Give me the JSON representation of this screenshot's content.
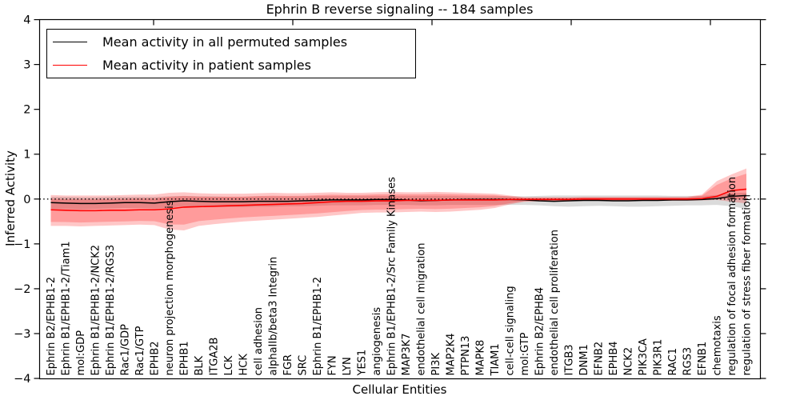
{
  "chart_data": {
    "type": "line",
    "title": "Ephrin B reverse signaling -- 184 samples",
    "xlabel": "Cellular Entities",
    "ylabel": "Inferred Activity",
    "ylim": [
      -4,
      4
    ],
    "grid": false,
    "legend_position": "upper left",
    "zero_line": {
      "style": "dotted",
      "color": "#000000",
      "y": 0
    },
    "ytick_values": [
      4,
      3,
      2,
      1,
      0,
      -1,
      -2,
      -3,
      -4
    ],
    "ytick_labels": [
      "4",
      "3",
      "2",
      "1",
      "0",
      "−1",
      "−2",
      "−3",
      "−4"
    ],
    "categories": [
      "Ephrin B2/EPHB1-2",
      "Ephrin B1/EPHB1-2/Tiam1",
      "mol:GDP",
      "Ephrin B1/EPHB1-2/NCK2",
      "Ephrin B1/EPHB1-2/RGS3",
      "Rac1/GDP",
      "Rac1/GTP",
      "EPHB2",
      "neuron projection morphogenesis",
      "EPHB1",
      "BLK",
      "ITGA2B",
      "LCK",
      "HCK",
      "cell adhesion",
      "alphaIIb/beta3 Integrin",
      "FGR",
      "SRC",
      "Ephrin B1/EPHB1-2",
      "FYN",
      "LYN",
      "YES1",
      "angiogenesis",
      "Ephrin B1/EPHB1-2/Src Family Kinases",
      "MAP3K7",
      "endothelial cell migration",
      "PI3K",
      "MAP2K4",
      "PTPN13",
      "MAPK8",
      "TIAM1",
      "cell-cell signaling",
      "mol:GTP",
      "Ephrin B2/EPHB4",
      "endothelial cell proliferation",
      "ITGB3",
      "DNM1",
      "EFNB2",
      "EPHB4",
      "NCK2",
      "PIK3CA",
      "PIK3R1",
      "RAC1",
      "RGS3",
      "EFNB1",
      "chemotaxis",
      "regulation of focal adhesion formation",
      "regulation of stress fiber formation"
    ],
    "series": [
      {
        "name": "Mean activity in all permuted samples",
        "color": "#000000",
        "band_color": "#888888",
        "band_opacity": 0.3,
        "values": [
          -0.08,
          -0.09,
          -0.1,
          -0.1,
          -0.09,
          -0.08,
          -0.08,
          -0.09,
          -0.06,
          -0.04,
          -0.05,
          -0.06,
          -0.06,
          -0.06,
          -0.05,
          -0.05,
          -0.05,
          -0.04,
          -0.03,
          -0.02,
          -0.02,
          -0.02,
          -0.01,
          -0.01,
          -0.02,
          -0.04,
          -0.03,
          -0.02,
          -0.01,
          -0.01,
          -0.01,
          -0.01,
          -0.02,
          -0.04,
          -0.05,
          -0.04,
          -0.03,
          -0.03,
          -0.04,
          -0.04,
          -0.03,
          -0.03,
          -0.02,
          -0.02,
          -0.01,
          0.01,
          0.06,
          0.08
        ],
        "band_upper": [
          0.05,
          0.05,
          0.04,
          0.04,
          0.05,
          0.05,
          0.05,
          0.05,
          0.06,
          0.07,
          0.06,
          0.06,
          0.05,
          0.05,
          0.06,
          0.06,
          0.06,
          0.06,
          0.07,
          0.07,
          0.07,
          0.07,
          0.07,
          0.07,
          0.07,
          0.07,
          0.07,
          0.07,
          0.06,
          0.06,
          0.06,
          0.06,
          0.06,
          0.07,
          0.08,
          0.08,
          0.08,
          0.08,
          0.08,
          0.08,
          0.08,
          0.08,
          0.07,
          0.07,
          0.07,
          0.09,
          0.14,
          0.14
        ],
        "band_lower": [
          -0.22,
          -0.22,
          -0.23,
          -0.22,
          -0.21,
          -0.2,
          -0.2,
          -0.21,
          -0.19,
          -0.16,
          -0.17,
          -0.18,
          -0.18,
          -0.18,
          -0.17,
          -0.17,
          -0.16,
          -0.16,
          -0.15,
          -0.14,
          -0.14,
          -0.14,
          -0.13,
          -0.13,
          -0.13,
          -0.14,
          -0.14,
          -0.13,
          -0.13,
          -0.13,
          -0.13,
          -0.13,
          -0.13,
          -0.14,
          -0.16,
          -0.17,
          -0.16,
          -0.15,
          -0.16,
          -0.17,
          -0.17,
          -0.16,
          -0.15,
          -0.14,
          -0.14,
          -0.13,
          -0.16,
          -0.22
        ]
      },
      {
        "name": "Mean activity in patient samples",
        "color": "#ff0000",
        "band_color": "#ff0000",
        "band_opacity": 0.22,
        "band_inner_ratio": 0.75,
        "values": [
          -0.24,
          -0.25,
          -0.26,
          -0.26,
          -0.25,
          -0.25,
          -0.24,
          -0.24,
          -0.22,
          -0.18,
          -0.17,
          -0.16,
          -0.15,
          -0.14,
          -0.13,
          -0.12,
          -0.11,
          -0.1,
          -0.08,
          -0.06,
          -0.05,
          -0.05,
          -0.04,
          -0.04,
          -0.03,
          -0.03,
          -0.03,
          -0.02,
          -0.02,
          -0.02,
          -0.02,
          -0.01,
          -0.01,
          -0.01,
          -0.01,
          -0.01,
          0.0,
          0.0,
          0.0,
          0.0,
          0.0,
          0.0,
          0.0,
          0.0,
          0.01,
          0.06,
          0.19,
          0.22
        ],
        "band_upper": [
          0.09,
          0.08,
          0.08,
          0.08,
          0.08,
          0.09,
          0.1,
          0.1,
          0.14,
          0.15,
          0.13,
          0.12,
          0.12,
          0.12,
          0.13,
          0.14,
          0.13,
          0.13,
          0.14,
          0.15,
          0.14,
          0.14,
          0.15,
          0.16,
          0.15,
          0.15,
          0.16,
          0.15,
          0.14,
          0.13,
          0.12,
          0.08,
          0.04,
          0.04,
          0.04,
          0.04,
          0.05,
          0.05,
          0.05,
          0.05,
          0.05,
          0.05,
          0.05,
          0.05,
          0.1,
          0.4,
          0.55,
          0.68
        ],
        "band_lower": [
          -0.6,
          -0.6,
          -0.61,
          -0.6,
          -0.59,
          -0.58,
          -0.57,
          -0.58,
          -0.68,
          -0.7,
          -0.6,
          -0.56,
          -0.53,
          -0.5,
          -0.48,
          -0.46,
          -0.44,
          -0.42,
          -0.4,
          -0.37,
          -0.34,
          -0.31,
          -0.3,
          -0.3,
          -0.29,
          -0.28,
          -0.29,
          -0.28,
          -0.26,
          -0.24,
          -0.2,
          -0.12,
          -0.06,
          -0.05,
          -0.05,
          -0.05,
          -0.04,
          -0.04,
          -0.04,
          -0.04,
          -0.04,
          -0.04,
          -0.04,
          -0.04,
          -0.03,
          -0.02,
          -0.06,
          -0.1
        ]
      }
    ]
  }
}
